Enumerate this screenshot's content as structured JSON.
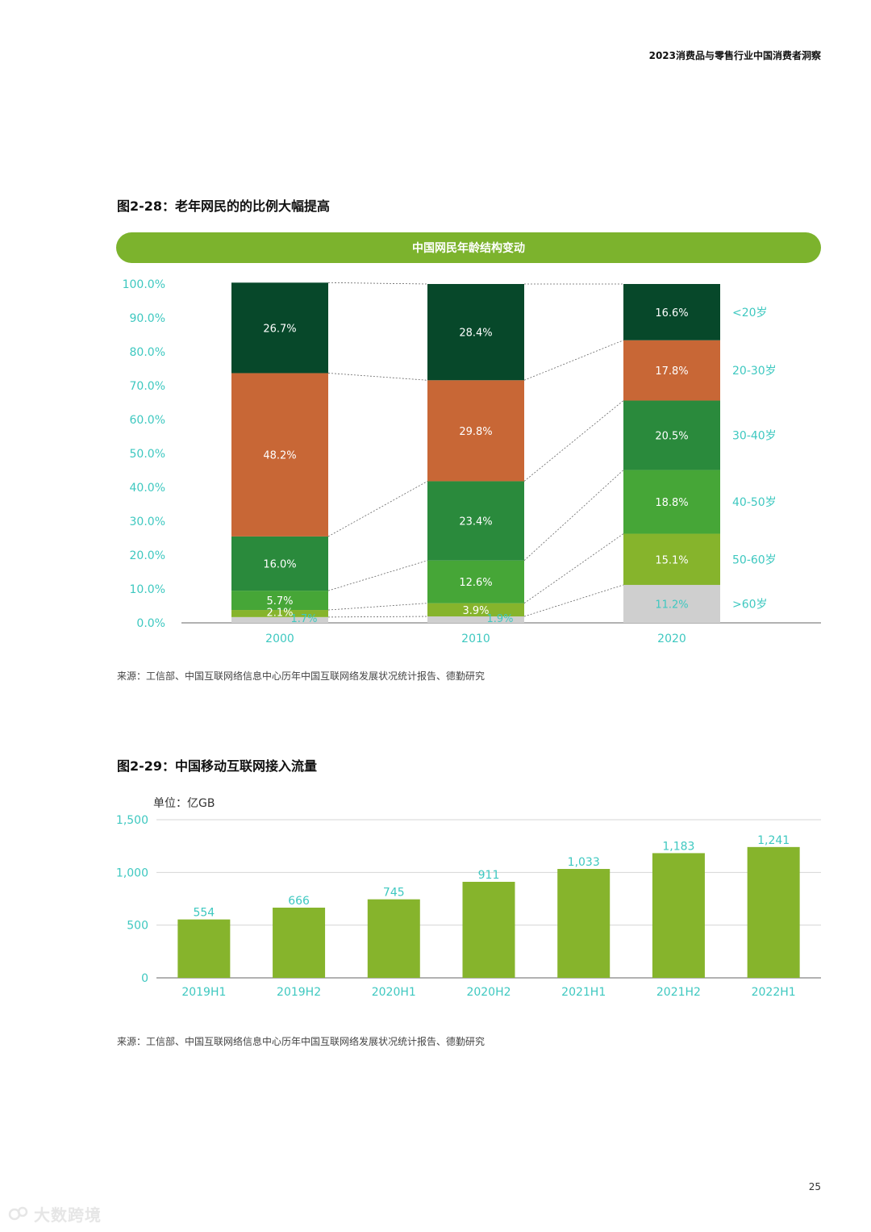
{
  "header": {
    "title": "2023消费品与零售行业中国消费者洞察"
  },
  "figure1": {
    "title": "图2-28：老年网民的的比例大幅提高",
    "banner": "中国网民年龄结构变动",
    "source": "来源：工信部、中国互联网络信息中心历年中国互联网络发展状况统计报告、德勤研究"
  },
  "figure2": {
    "title": "图2-29：中国移动互联网接入流量",
    "unit": "单位：亿GB",
    "source": "来源：工信部、中国互联网络信息中心历年中国互联网络发展状况统计报告、德勤研究"
  },
  "page_number": "25",
  "watermark": {
    "text": "大数跨境"
  },
  "chart_data": [
    {
      "type": "bar",
      "stacked": true,
      "percent": true,
      "categories": [
        "2000",
        "2010",
        "2020"
      ],
      "ylim": [
        0,
        100
      ],
      "yticks": [
        "0.0%",
        "10.0%",
        "20.0%",
        "30.0%",
        "40.0%",
        "50.0%",
        "60.0%",
        "70.0%",
        "80.0%",
        "90.0%",
        "100.0%"
      ],
      "legend_position": "right",
      "series": [
        {
          "name": ">60岁",
          "color": "#cfcfcf",
          "values": [
            1.7,
            1.9,
            11.2
          ],
          "labels": [
            "1.7%",
            "1.9%",
            "11.2%"
          ],
          "label_color": "#3ec8c0"
        },
        {
          "name": "50-60岁",
          "color": "#86b42c",
          "values": [
            2.1,
            3.9,
            15.1
          ],
          "labels": [
            "2.1%",
            "3.9%",
            "15.1%"
          ],
          "label_color": "#ffffff"
        },
        {
          "name": "40-50岁",
          "color": "#46a637",
          "values": [
            5.7,
            12.6,
            18.8
          ],
          "labels": [
            "5.7%",
            "12.6%",
            "18.8%"
          ],
          "label_color": "#ffffff"
        },
        {
          "name": "30-40岁",
          "color": "#2a8a3c",
          "values": [
            16.0,
            23.4,
            20.5
          ],
          "labels": [
            "16.0%",
            "23.4%",
            "20.5%"
          ],
          "label_color": "#ffffff"
        },
        {
          "name": "20-30岁",
          "color": "#c86736",
          "values": [
            48.2,
            29.8,
            17.8
          ],
          "labels": [
            "48.2%",
            "29.8%",
            "17.8%"
          ],
          "label_color": "#ffffff"
        },
        {
          "name": "<20岁",
          "color": "#07482a",
          "values": [
            26.7,
            28.4,
            16.6
          ],
          "labels": [
            "26.7%",
            "28.4%",
            "16.6%"
          ],
          "label_color": "#ffffff"
        }
      ]
    },
    {
      "type": "bar",
      "categories": [
        "2019H1",
        "2019H2",
        "2020H1",
        "2020H2",
        "2021H1",
        "2021H2",
        "2022H1"
      ],
      "values": [
        554,
        666,
        745,
        911,
        1033,
        1183,
        1241
      ],
      "labels": [
        "554",
        "666",
        "745",
        "911",
        "1,033",
        "1,183",
        "1,241"
      ],
      "ylim": [
        0,
        1500
      ],
      "yticks": [
        "0",
        "500",
        "1,000",
        "1,500"
      ],
      "ylabel": "单位：亿GB",
      "grid": true,
      "bar_color": "#86b42c",
      "label_color": "#3ec8c0"
    }
  ]
}
